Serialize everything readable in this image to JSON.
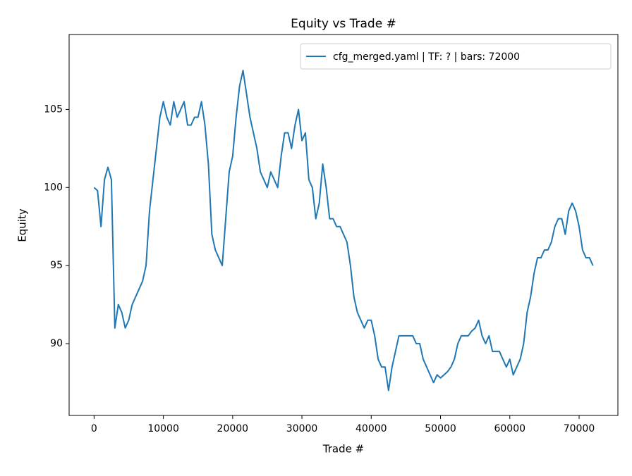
{
  "chart_data": {
    "type": "line",
    "title": "Equity vs Trade #",
    "xlabel": "Trade #",
    "ylabel": "Equity",
    "xlim": [
      -3600,
      75600
    ],
    "ylim": [
      85.4,
      109.8
    ],
    "xticks": [
      0,
      10000,
      20000,
      30000,
      40000,
      50000,
      60000,
      70000
    ],
    "yticks": [
      90,
      95,
      100,
      105
    ],
    "legend": "upper right",
    "x": [
      0,
      500,
      1000,
      1500,
      2000,
      2500,
      3000,
      3500,
      4000,
      4500,
      5000,
      5500,
      6000,
      6500,
      7000,
      7500,
      8000,
      8500,
      9000,
      9500,
      10000,
      10500,
      11000,
      11500,
      12000,
      12500,
      13000,
      13500,
      14000,
      14500,
      15000,
      15500,
      16000,
      16500,
      17000,
      17500,
      18000,
      18500,
      19000,
      19500,
      20000,
      20500,
      21000,
      21500,
      22000,
      22500,
      23000,
      23500,
      24000,
      24500,
      25000,
      25500,
      26000,
      26500,
      27000,
      27500,
      28000,
      28500,
      29000,
      29500,
      30000,
      30500,
      31000,
      31500,
      32000,
      32500,
      33000,
      33500,
      34000,
      34500,
      35000,
      35500,
      36000,
      36500,
      37000,
      37500,
      38000,
      38500,
      39000,
      39500,
      40000,
      40500,
      41000,
      41500,
      42000,
      42500,
      43000,
      43500,
      44000,
      44500,
      45000,
      45500,
      46000,
      46500,
      47000,
      47500,
      48000,
      48500,
      49000,
      49500,
      50000,
      50500,
      51000,
      51500,
      52000,
      52500,
      53000,
      53500,
      54000,
      54500,
      55000,
      55500,
      56000,
      56500,
      57000,
      57500,
      58000,
      58500,
      59000,
      59500,
      60000,
      60500,
      61000,
      61500,
      62000,
      62500,
      63000,
      63500,
      64000,
      64500,
      65000,
      65500,
      66000,
      66500,
      67000,
      67500,
      68000,
      68500,
      69000,
      69500,
      70000,
      70500,
      71000,
      71500,
      72000
    ],
    "series": [
      {
        "name": "cfg_merged.yaml | TF: ? | bars: 72000",
        "color": "#1f77b4",
        "values": [
          100,
          99.8,
          97.5,
          100.5,
          101.3,
          100.5,
          91,
          92.5,
          92,
          91,
          91.5,
          92.5,
          93,
          93.5,
          94,
          95,
          98.5,
          100.5,
          102.5,
          104.5,
          105.5,
          104.5,
          104,
          105.5,
          104.5,
          105,
          105.5,
          104,
          104,
          104.5,
          104.5,
          105.5,
          104,
          101.5,
          97,
          96,
          95.5,
          95,
          98,
          101,
          102,
          104.5,
          106.5,
          107.5,
          106,
          104.5,
          103.5,
          102.5,
          101,
          100.5,
          100,
          101,
          100.5,
          100,
          102,
          103.5,
          103.5,
          102.5,
          104,
          105,
          103,
          103.5,
          100.5,
          100,
          98,
          99,
          101.5,
          100,
          98,
          98,
          97.5,
          97.5,
          97,
          96.5,
          95,
          93,
          92,
          91.5,
          91,
          91.5,
          91.5,
          90.5,
          89,
          88.5,
          88.5,
          87,
          88.5,
          89.5,
          90.5,
          90.5,
          90.5,
          90.5,
          90.5,
          90,
          90,
          89,
          88.5,
          88,
          87.5,
          88,
          87.8,
          88,
          88.2,
          88.5,
          89,
          90,
          90.5,
          90.5,
          90.5,
          90.8,
          91,
          91.5,
          90.5,
          90,
          90.5,
          89.5,
          89.5,
          89.5,
          89,
          88.5,
          89,
          88,
          88.5,
          89,
          90,
          92,
          93,
          94.5,
          95.5,
          95.5,
          96,
          96,
          96.5,
          97.5,
          98,
          98,
          97,
          98.5,
          99,
          98.5,
          97.5,
          96,
          95.5,
          95.5,
          95
        ]
      }
    ]
  }
}
